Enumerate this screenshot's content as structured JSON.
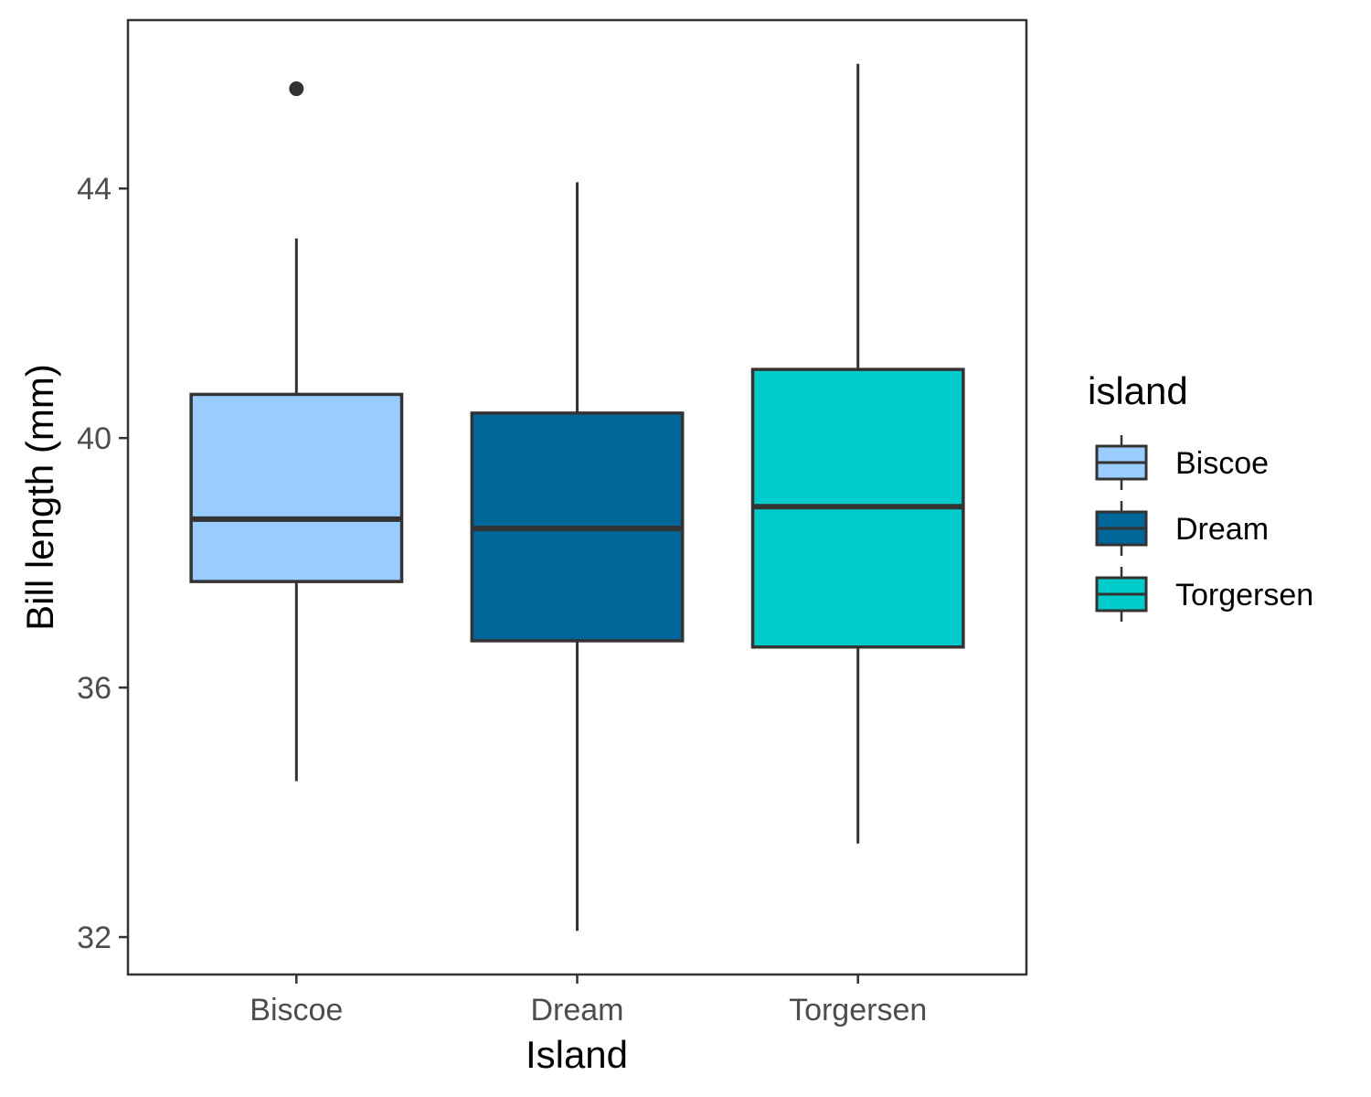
{
  "chart_data": {
    "type": "box",
    "xlabel": "Island",
    "ylabel": "Bill length (mm)",
    "ylim": [
      31.4,
      46.7
    ],
    "yticks": [
      32,
      36,
      40,
      44
    ],
    "grid": false,
    "categories": [
      "Biscoe",
      "Dream",
      "Torgersen"
    ],
    "boxes": [
      {
        "category": "Biscoe",
        "whisker_low": 34.5,
        "q1": 37.7,
        "median": 38.7,
        "q3": 40.7,
        "whisker_high": 43.2,
        "outliers": [
          45.6
        ],
        "color": "#99CCFF"
      },
      {
        "category": "Dream",
        "whisker_low": 32.1,
        "q1": 36.75,
        "median": 38.55,
        "q3": 40.4,
        "whisker_high": 44.1,
        "outliers": [],
        "color": "#006699"
      },
      {
        "category": "Torgersen",
        "whisker_low": 33.5,
        "q1": 36.65,
        "median": 38.9,
        "q3": 41.1,
        "whisker_high": 46.0,
        "outliers": [],
        "color": "#00CCCC"
      }
    ],
    "legend": {
      "title": "island",
      "position": "right",
      "entries": [
        "Biscoe",
        "Dream",
        "Torgersen"
      ]
    }
  }
}
